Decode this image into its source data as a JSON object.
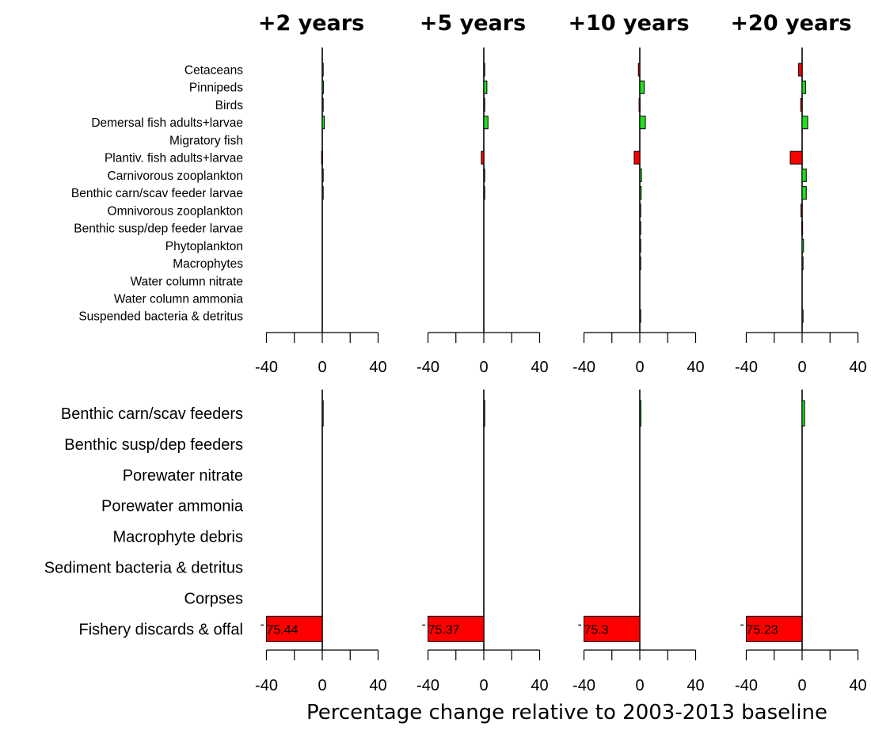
{
  "chart_data": {
    "type": "bar",
    "orientation": "horizontal",
    "xlabel": "Percentage change relative to 2003-2013 baseline",
    "xlim": [
      -40,
      40
    ],
    "tick_values": [
      -40,
      -20,
      0,
      20,
      40
    ],
    "tick_labels": [
      "-40",
      "0",
      "40"
    ],
    "colors": {
      "positive": "#22dd22",
      "negative": "#ff0000"
    },
    "panels": [
      "+2 years",
      "+5 years",
      "+10 years",
      "+20 years"
    ],
    "top_categories": [
      "Cetaceans",
      "Pinnipeds",
      "Birds",
      "Demersal fish adults+larvae",
      "Migratory fish",
      "Plantiv. fish adults+larvae",
      "Carnivorous zooplankton",
      "Benthic carn/scav feeder larvae",
      "Omnivorous zooplankton",
      "Benthic susp/dep feeder larvae",
      "Phytoplankton",
      "Macrophytes",
      "Water column nitrate",
      "Water column ammonia",
      "Suspended bacteria & detritus"
    ],
    "bottom_categories": [
      "Benthic carn/scav feeders",
      "Benthic susp/dep feeders",
      "Porewater nitrate",
      "Porewater ammonia",
      "Macrophyte debris",
      "Sediment bacteria & detritus",
      "Corpses",
      "Fishery discards & offal"
    ],
    "series_top": [
      {
        "name": "+2 years",
        "values": [
          0.3,
          0.8,
          0.2,
          1.5,
          0,
          -0.5,
          0.2,
          0.2,
          0,
          0,
          0,
          0,
          0,
          0,
          0
        ]
      },
      {
        "name": "+5 years",
        "values": [
          0.6,
          2.2,
          0.5,
          3.0,
          0,
          -1.8,
          0.5,
          0.4,
          0,
          0,
          0,
          0,
          0,
          0,
          0
        ]
      },
      {
        "name": "+10 years",
        "values": [
          -1.0,
          3.2,
          -0.5,
          4.0,
          0,
          -4.0,
          1.2,
          1.0,
          0.2,
          0.2,
          0.4,
          0.2,
          0,
          0,
          0.5
        ]
      },
      {
        "name": "+20 years",
        "values": [
          -2.5,
          2.5,
          -1.0,
          4.0,
          0,
          -8.5,
          3.0,
          3.0,
          -0.8,
          -0.3,
          1.0,
          0.3,
          0,
          0,
          0.5
        ]
      }
    ],
    "series_bottom": [
      {
        "name": "+2 years",
        "values": [
          0.2,
          0,
          0,
          0,
          0,
          0,
          0,
          -75.44
        ],
        "labels": [
          "",
          "",
          "",
          "",
          "",
          "",
          "",
          "-75.44"
        ]
      },
      {
        "name": "+5 years",
        "values": [
          0.6,
          0,
          0,
          0,
          0,
          0,
          0,
          -75.37
        ],
        "labels": [
          "",
          "",
          "",
          "",
          "",
          "",
          "",
          "-75.37"
        ]
      },
      {
        "name": "+10 years",
        "values": [
          0.8,
          0,
          0,
          0,
          0,
          0,
          0,
          -75.3
        ],
        "labels": [
          "",
          "",
          "",
          "",
          "",
          "",
          "",
          "-75.3"
        ]
      },
      {
        "name": "+20 years",
        "values": [
          1.8,
          0,
          0,
          0,
          0,
          0,
          0,
          -75.23
        ],
        "labels": [
          "",
          "",
          "",
          "",
          "",
          "",
          "",
          "-75.23"
        ]
      }
    ]
  }
}
